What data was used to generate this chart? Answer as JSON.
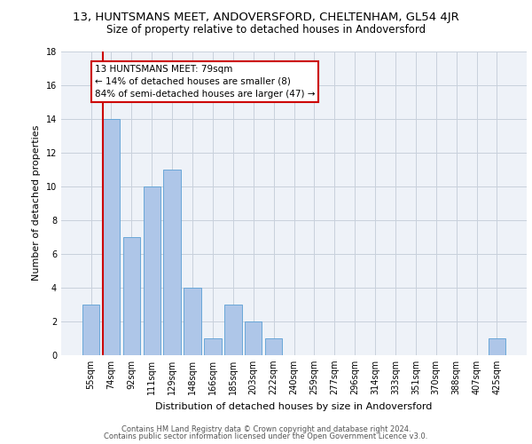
{
  "title1": "13, HUNTSMANS MEET, ANDOVERSFORD, CHELTENHAM, GL54 4JR",
  "title2": "Size of property relative to detached houses in Andoversford",
  "xlabel": "Distribution of detached houses by size in Andoversford",
  "ylabel": "Number of detached properties",
  "categories": [
    "55sqm",
    "74sqm",
    "92sqm",
    "111sqm",
    "129sqm",
    "148sqm",
    "166sqm",
    "185sqm",
    "203sqm",
    "222sqm",
    "240sqm",
    "259sqm",
    "277sqm",
    "296sqm",
    "314sqm",
    "333sqm",
    "351sqm",
    "370sqm",
    "388sqm",
    "407sqm",
    "425sqm"
  ],
  "values": [
    3,
    14,
    7,
    10,
    11,
    4,
    1,
    3,
    2,
    1,
    0,
    0,
    0,
    0,
    0,
    0,
    0,
    0,
    0,
    0,
    1
  ],
  "bar_color": "#aec6e8",
  "bar_edge_color": "#5a9fd4",
  "annotation_line1": "13 HUNTSMANS MEET: 79sqm",
  "annotation_line2": "← 14% of detached houses are smaller (8)",
  "annotation_line3": "84% of semi-detached houses are larger (47) →",
  "annotation_box_color": "#ffffff",
  "annotation_box_edge_color": "#cc0000",
  "vline_color": "#cc0000",
  "ylim": [
    0,
    18
  ],
  "yticks": [
    0,
    2,
    4,
    6,
    8,
    10,
    12,
    14,
    16,
    18
  ],
  "footer1": "Contains HM Land Registry data © Crown copyright and database right 2024.",
  "footer2": "Contains public sector information licensed under the Open Government Licence v3.0.",
  "bg_color": "#eef2f8",
  "grid_color": "#c8d0dc",
  "title1_fontsize": 9.5,
  "title2_fontsize": 8.5,
  "xlabel_fontsize": 8,
  "ylabel_fontsize": 8,
  "tick_fontsize": 7,
  "footer_fontsize": 6,
  "annotation_fontsize": 7.5
}
